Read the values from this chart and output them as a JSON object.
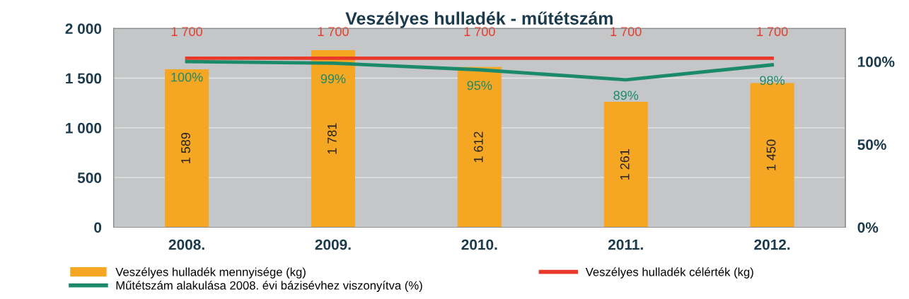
{
  "chart_data": {
    "type": "bar",
    "title": "Veszélyes hulladék - műtétszám",
    "categories": [
      "2008.",
      "2009.",
      "2010.",
      "2011.",
      "2012."
    ],
    "series": [
      {
        "name": "Veszélyes hulladék mennyisége (kg)",
        "color": "#f5a623",
        "values": [
          1589,
          1781,
          1612,
          1261,
          1450
        ],
        "value_labels": [
          "1 589",
          "1 781",
          "1 612",
          "1 261",
          "1 450"
        ]
      },
      {
        "name": "Veszélyes hulladék célérték (kg)",
        "type": "line",
        "color": "#e8392a",
        "values": [
          1700,
          1700,
          1700,
          1700,
          1700
        ],
        "value_labels": [
          "1 700",
          "1 700",
          "1 700",
          "1 700",
          "1 700"
        ]
      },
      {
        "name": "Műtétszám alakulása 2008. évi bázisévhez viszonyítva (%)",
        "type": "line",
        "axis": "y2",
        "color": "#1a8a6a",
        "values": [
          100,
          99,
          95,
          89,
          98
        ],
        "value_labels": [
          "100%",
          "99%",
          "95%",
          "89%",
          "98%"
        ]
      }
    ],
    "ylim": [
      0,
      2000
    ],
    "yticks": [
      0,
      500,
      {
        "value": 1000,
        "label": "1 000"
      },
      {
        "value": 1500,
        "label": "1 500"
      },
      {
        "value": 2000,
        "label": "2 000"
      }
    ],
    "y2lim": [
      0,
      120
    ],
    "y2ticks": [
      {
        "value": 0,
        "label": "0%"
      },
      {
        "value": 50,
        "label": "50%"
      },
      {
        "value": 100,
        "label": "100%"
      }
    ],
    "grid": "y",
    "legend": "bottom"
  }
}
